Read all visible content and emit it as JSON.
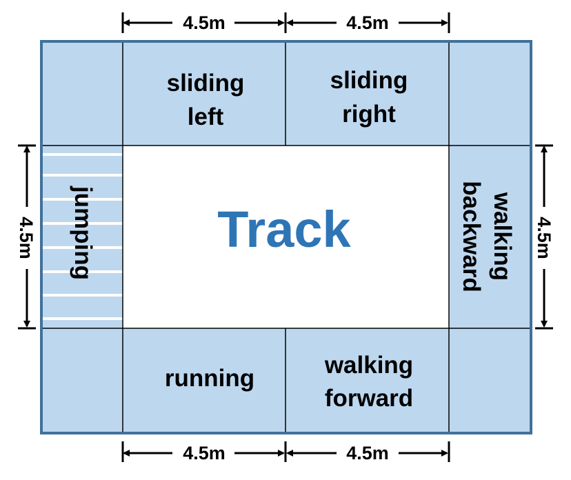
{
  "colors": {
    "zone_fill": "#bdd7ee",
    "frame_border": "#41719c",
    "track_fill": "#ffffff",
    "title_color": "#2e75b6",
    "grid_line": "#000000",
    "stripe": "#ffffff"
  },
  "center": {
    "label": "Track"
  },
  "zones": {
    "sliding_left": [
      "sliding",
      "left"
    ],
    "sliding_right": [
      "sliding",
      "right"
    ],
    "walking_backward": [
      "walking",
      "backward"
    ],
    "jumping": "jumping",
    "running": "running",
    "walking_forward": [
      "walking",
      "forward"
    ]
  },
  "dimensions": {
    "top_left": "4.5m",
    "top_right": "4.5m",
    "bottom_left": "4.5m",
    "bottom_right": "4.5m",
    "left": "4.5m",
    "right": "4.5m"
  }
}
